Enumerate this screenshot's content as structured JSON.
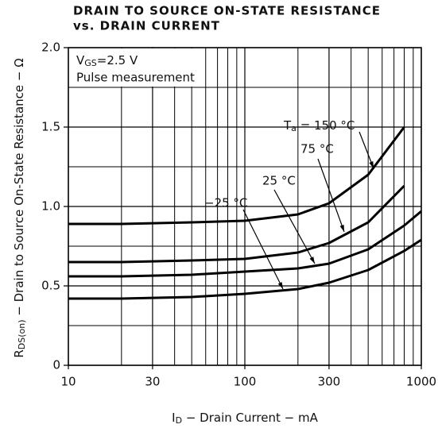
{
  "chart_data": {
    "type": "line",
    "title": [
      "DRAIN TO SOURCE ON-STATE RESISTANCE",
      "vs. DRAIN CURRENT"
    ],
    "y_label": {
      "base": "R",
      "sub": "DS(on)",
      "rest": " − Drain to Source On-State Resistance − Ω"
    },
    "x_label": {
      "base": "I",
      "sub": "D",
      "rest": " − Drain Current − mA"
    },
    "annotations": [
      {
        "base": "V",
        "sub": "GS",
        "rest": "=2.5 V"
      },
      "Pulse measurement"
    ],
    "temperature_label": {
      "base": "T",
      "sub": "a",
      "rest": " = "
    },
    "xscale": "log",
    "xlim": [
      10,
      1000
    ],
    "xticks": [
      10,
      30,
      100,
      300,
      1000
    ],
    "xminorticks": [
      20,
      40,
      50,
      60,
      70,
      80,
      90,
      200,
      400,
      500,
      600,
      700,
      800,
      900
    ],
    "ylim": [
      0,
      2
    ],
    "yticks": [
      0,
      0.5,
      {
        "value": 1,
        "label": "1.0"
      },
      1.5,
      {
        "value": 2,
        "label": "2.0"
      }
    ],
    "yminorticks": [
      0.25,
      0.75,
      1.25,
      1.75
    ],
    "grid": true,
    "x": [
      10,
      20,
      50,
      100,
      200,
      300,
      500,
      800,
      1000
    ],
    "series": [
      {
        "name": "150 °C",
        "color": "#000000",
        "values": [
          0.89,
          0.89,
          0.9,
          0.91,
          0.95,
          1.02,
          1.2,
          1.5,
          null
        ]
      },
      {
        "name": "75 °C",
        "color": "#000000",
        "values": [
          0.65,
          0.65,
          0.66,
          0.67,
          0.71,
          0.77,
          0.9,
          1.13,
          null
        ]
      },
      {
        "name": "25 °C",
        "color": "#000000",
        "values": [
          0.56,
          0.56,
          0.57,
          0.59,
          0.61,
          0.64,
          0.73,
          0.88,
          0.97
        ]
      },
      {
        "name": "−25 °C",
        "color": "#000000",
        "values": [
          0.42,
          0.42,
          0.43,
          0.45,
          0.48,
          0.52,
          0.6,
          0.72,
          0.79
        ]
      }
    ]
  }
}
